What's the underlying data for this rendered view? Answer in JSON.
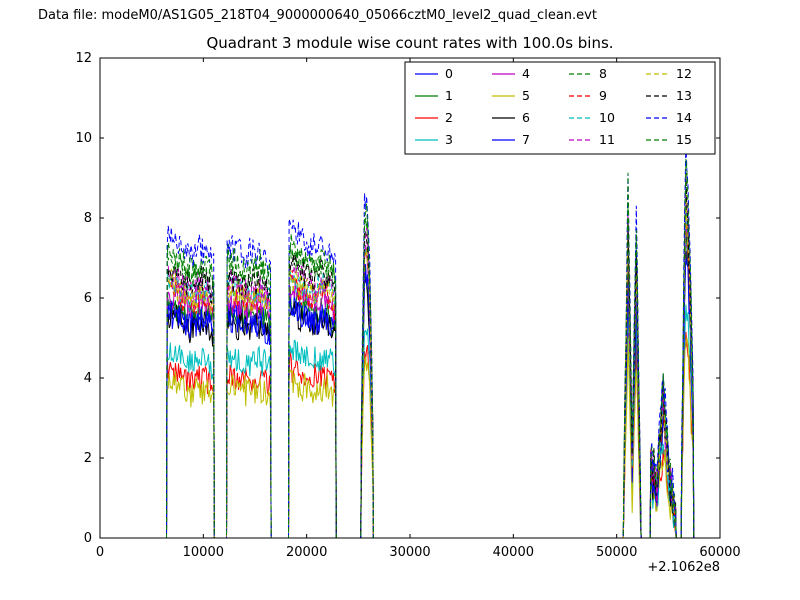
{
  "header": {
    "data_file": "Data file: modeM0/AS1G05_218T04_9000000640_05066cztM0_level2_quad_clean.evt"
  },
  "chart_data": {
    "type": "line",
    "title": "Quadrant 3 module wise count rates with 100.0s bins.",
    "xlabel": "",
    "ylabel": "",
    "xlim": [
      0,
      60000
    ],
    "ylim": [
      0,
      12
    ],
    "xticks": [
      0,
      10000,
      20000,
      30000,
      40000,
      50000,
      60000
    ],
    "yticks": [
      0,
      2,
      4,
      6,
      8,
      10,
      12
    ],
    "x_offset_label": "+2.1062e8",
    "grid": false,
    "legend_position": "upper-center-right, 4 columns",
    "bin_seconds": 100,
    "noise_amplitude": 0.25,
    "segments": [
      {
        "x_start": 6500,
        "x_end": 11000,
        "profile": [
          1.0,
          0.97,
          0.93,
          0.96,
          0.9
        ]
      },
      {
        "x_start": 12300,
        "x_end": 16500,
        "profile": [
          0.97,
          0.95,
          0.93,
          0.95,
          0.9
        ]
      },
      {
        "x_start": 18300,
        "x_end": 22800,
        "profile": [
          1.02,
          0.98,
          0.95,
          0.97,
          0.92
        ]
      },
      {
        "x_start": 25300,
        "x_end": 26400,
        "profile": [
          0.4,
          1.1,
          1.15,
          0.9,
          0.4
        ]
      },
      {
        "x_start": 50700,
        "x_end": 52300,
        "profile": [
          0.2,
          1.2,
          0.3,
          1.1,
          0.15
        ]
      },
      {
        "x_start": 53300,
        "x_end": 55700,
        "profile": [
          0.3,
          0.2,
          0.55,
          0.25,
          0.08
        ]
      },
      {
        "x_start": 56300,
        "x_end": 57400,
        "profile": [
          0.3,
          1.32,
          1.05,
          0.5
        ]
      }
    ],
    "series": [
      {
        "name": "0",
        "color": "#0000ff",
        "dash": "solid",
        "base_rate": 5.8
      },
      {
        "name": "1",
        "color": "#007f00",
        "dash": "solid",
        "base_rate": 5.9
      },
      {
        "name": "2",
        "color": "#ff0000",
        "dash": "solid",
        "base_rate": 4.2
      },
      {
        "name": "3",
        "color": "#00bfbf",
        "dash": "solid",
        "base_rate": 4.7
      },
      {
        "name": "4",
        "color": "#bf00bf",
        "dash": "solid",
        "base_rate": 6.2
      },
      {
        "name": "5",
        "color": "#bfbf00",
        "dash": "solid",
        "base_rate": 3.9
      },
      {
        "name": "6",
        "color": "#000000",
        "dash": "solid",
        "base_rate": 5.6
      },
      {
        "name": "7",
        "color": "#0000ff",
        "dash": "solid",
        "base_rate": 5.7
      },
      {
        "name": "8",
        "color": "#007f00",
        "dash": "dashed",
        "base_rate": 7.0
      },
      {
        "name": "9",
        "color": "#ff0000",
        "dash": "dashed",
        "base_rate": 6.3
      },
      {
        "name": "10",
        "color": "#00bfbf",
        "dash": "dashed",
        "base_rate": 6.5
      },
      {
        "name": "11",
        "color": "#bf00bf",
        "dash": "dashed",
        "base_rate": 6.6
      },
      {
        "name": "12",
        "color": "#bfbf00",
        "dash": "dashed",
        "base_rate": 6.4
      },
      {
        "name": "13",
        "color": "#000000",
        "dash": "dashed",
        "base_rate": 6.8
      },
      {
        "name": "14",
        "color": "#0000ff",
        "dash": "dashed",
        "base_rate": 7.6
      },
      {
        "name": "15",
        "color": "#007f00",
        "dash": "dashed",
        "base_rate": 7.2
      }
    ]
  }
}
